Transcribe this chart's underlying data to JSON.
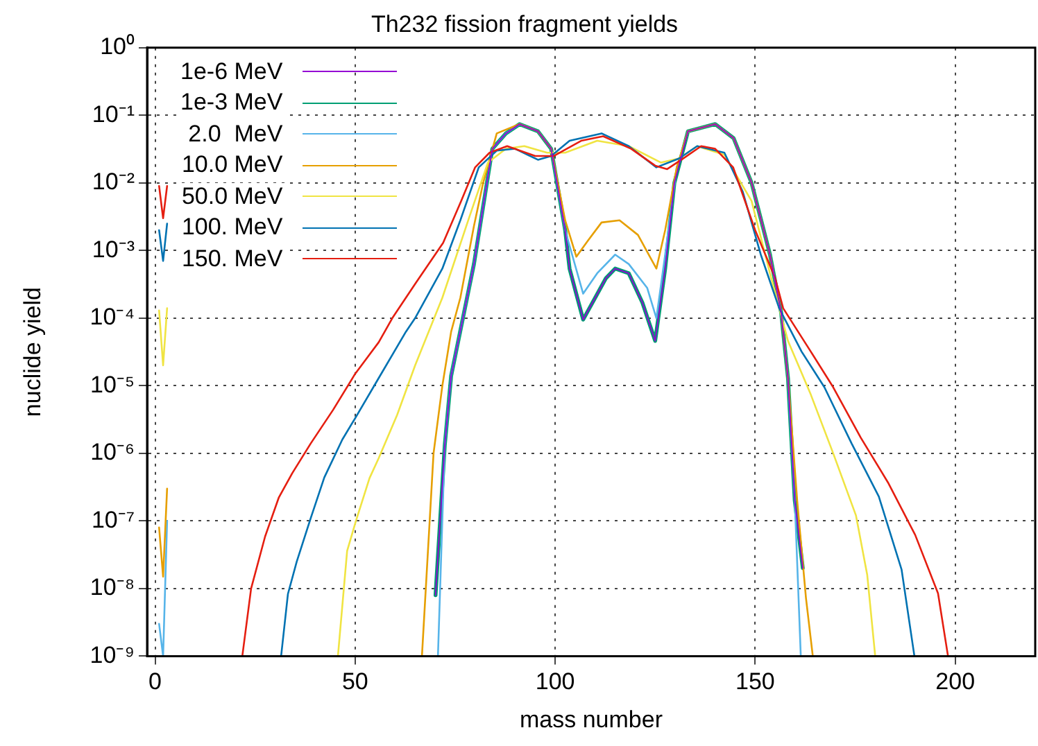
{
  "chart_data": {
    "type": "line",
    "title": "Th232 fission fragment yields",
    "xlabel": "mass number",
    "ylabel": "nuclide yield",
    "log": "y",
    "grid": true,
    "legend": "top left",
    "line_style": "solid",
    "marker": "none",
    "xlim": [
      -2,
      220
    ],
    "xticks": [
      0,
      50,
      100,
      150,
      200
    ],
    "ylim": [
      1e-09,
      1
    ],
    "yticks": [
      {
        "value": 1,
        "label": "10⁰"
      },
      {
        "value": 0.1,
        "label": "10⁻¹"
      },
      {
        "value": 0.01,
        "label": "10⁻²"
      },
      {
        "value": 0.001,
        "label": "10⁻³"
      },
      {
        "value": 0.0001,
        "label": "10⁻⁴"
      },
      {
        "value": 1e-05,
        "label": "10⁻⁵"
      },
      {
        "value": 1e-06,
        "label": "10⁻⁶"
      },
      {
        "value": 1e-07,
        "label": "10⁻⁷"
      },
      {
        "value": 1e-08,
        "label": "10⁻⁸"
      },
      {
        "value": 1e-09,
        "label": "10⁻⁹"
      }
    ],
    "series": [
      {
        "name": "1e-6 MeV",
        "color": "#9400d3",
        "x": [
          70.1,
          72.4,
          74,
          79.7,
          84.3,
          87.7,
          91.1,
          95.7,
          99,
          102.5,
          103.6,
          107,
          112.7,
          115,
          118.4,
          121.8,
          125,
          127.5,
          129.8,
          133.2,
          140,
          144.6,
          149.1,
          153.7,
          156.5,
          158.2,
          159.9,
          161.9
        ],
        "values": [
          8e-09,
          1.3e-06,
          1.4e-05,
          0.00063,
          0.032,
          0.054,
          0.074,
          0.058,
          0.032,
          0.002,
          0.00054,
          9.5e-05,
          0.00039,
          0.00054,
          0.00046,
          0.00017,
          4.6e-05,
          0.00054,
          0.01,
          0.058,
          0.074,
          0.046,
          0.01,
          0.00087,
          0.00012,
          1.3e-05,
          2e-07,
          2e-08
        ]
      },
      {
        "name": "1e-3 MeV",
        "color": "#009e73",
        "x": [
          70.1,
          72.4,
          74,
          79.7,
          84.3,
          87.7,
          91.1,
          95.7,
          99,
          102.5,
          103.6,
          107,
          112.7,
          115,
          118.4,
          121.8,
          125,
          127.5,
          129.8,
          133.2,
          140,
          144.6,
          149.1,
          153.7,
          156.5,
          158.2,
          159.9,
          161.9
        ],
        "values": [
          8e-09,
          1.3e-06,
          1.4e-05,
          0.00063,
          0.032,
          0.054,
          0.074,
          0.058,
          0.032,
          0.002,
          0.00054,
          9.5e-05,
          0.00039,
          0.00054,
          0.00046,
          0.00017,
          4.6e-05,
          0.00054,
          0.01,
          0.058,
          0.074,
          0.046,
          0.01,
          0.00087,
          0.00012,
          1.3e-05,
          2e-07,
          2e-08
        ]
      },
      {
        "name": "2.0  MeV",
        "color": "#56b4e9",
        "x": [
          1,
          2,
          3,
          10,
          70.7,
          72.4,
          74,
          79.7,
          84.3,
          87.7,
          91.1,
          95.7,
          99,
          102.5,
          107,
          110.5,
          115,
          118.4,
          123,
          125.3,
          127.5,
          130.4,
          133.2,
          140,
          144.6,
          149.1,
          153.7,
          156.5,
          158.2,
          159.9,
          161.4
        ],
        "values": [
          3e-09,
          1e-09,
          1e-07,
          null,
          1e-09,
          1.3e-06,
          1.4e-05,
          0.00063,
          0.032,
          0.054,
          0.074,
          0.058,
          0.032,
          0.002,
          0.00023,
          0.00046,
          0.00087,
          0.00063,
          0.00028,
          0.0001,
          0.00087,
          0.017,
          0.058,
          0.074,
          0.046,
          0.01,
          0.00087,
          0.00012,
          1.3e-05,
          2e-07,
          1e-09
        ]
      },
      {
        "name": "10.0 MeV",
        "color": "#e69f00",
        "x": [
          1,
          2,
          3,
          10,
          66.7,
          69.6,
          71.8,
          74,
          76.3,
          79.7,
          82,
          85.4,
          91.1,
          95.7,
          99,
          102.5,
          105.3,
          108.2,
          111.6,
          116.1,
          120.7,
          125.3,
          127.5,
          130.4,
          133.2,
          140,
          144.6,
          149.1,
          153.7,
          156.5,
          158.2,
          160.5,
          162.7,
          164.4
        ],
        "values": [
          8e-08,
          1.5e-08,
          3e-07,
          null,
          1e-09,
          1e-06,
          1e-05,
          6.3e-05,
          0.0002,
          0.0023,
          0.01,
          0.054,
          0.074,
          0.058,
          0.032,
          0.0028,
          0.00081,
          0.0014,
          0.0026,
          0.0028,
          0.0017,
          0.00054,
          0.002,
          0.017,
          0.058,
          0.074,
          0.046,
          0.01,
          0.00087,
          0.00012,
          1.3e-05,
          2e-07,
          7.2e-09,
          1e-09
        ]
      },
      {
        "name": "50.0 MeV",
        "color": "#f0e442",
        "x": [
          1,
          2,
          3,
          10,
          45.7,
          48,
          50.2,
          53.6,
          55.9,
          60.5,
          65,
          71.8,
          78.6,
          83.2,
          87.7,
          92.3,
          98,
          102.5,
          110.5,
          118.4,
          126.4,
          131,
          135.5,
          142.3,
          149.1,
          153.7,
          158.2,
          163.9,
          169.5,
          175.2,
          178,
          180
        ],
        "values": [
          0.00013,
          2e-05,
          0.00014,
          null,
          1e-09,
          3.6e-08,
          1e-07,
          4.3e-07,
          8.5e-07,
          3.7e-06,
          2e-05,
          0.0002,
          0.0032,
          0.02,
          0.032,
          0.035,
          0.028,
          0.028,
          0.042,
          0.035,
          0.02,
          0.023,
          0.035,
          0.026,
          0.0054,
          0.00046,
          4.6e-05,
          7.4e-06,
          1e-06,
          1.2e-07,
          1.6e-08,
          1e-09
        ]
      },
      {
        "name": "100. MeV",
        "color": "#0072b2",
        "x": [
          1,
          2,
          3,
          10,
          31.5,
          33.2,
          35.4,
          38.9,
          42.3,
          46.8,
          50,
          55.9,
          62.7,
          65,
          71.8,
          76.3,
          80.9,
          85.4,
          90,
          95.7,
          99,
          103.6,
          111.6,
          118.4,
          125.3,
          131,
          135.5,
          142.3,
          146.9,
          151.4,
          156,
          161.6,
          167.3,
          174.1,
          180.9,
          186.6,
          189.8
        ],
        "values": [
          0.002,
          0.0007,
          0.0025,
          null,
          1e-09,
          8.3e-09,
          2.5e-08,
          1.1e-07,
          4.4e-07,
          1.6e-06,
          3.3e-06,
          1.3e-05,
          6.3e-05,
          0.0001,
          0.00054,
          0.0028,
          0.017,
          0.03,
          0.032,
          0.022,
          0.025,
          0.042,
          0.054,
          0.035,
          0.017,
          0.023,
          0.035,
          0.028,
          0.0074,
          0.00087,
          0.00014,
          3.2e-05,
          9.5e-06,
          1.4e-06,
          2.3e-07,
          1.9e-08,
          1e-09
        ]
      },
      {
        "name": "150. MeV",
        "color": "#e51e10",
        "x": [
          1,
          2,
          3,
          10,
          21.8,
          24,
          27.5,
          30.9,
          34.3,
          38.9,
          44.5,
          50,
          55.9,
          59.3,
          65,
          72,
          76.5,
          80,
          83.6,
          88,
          95,
          99.6,
          106.5,
          112,
          119,
          125,
          128,
          132,
          136.5,
          140,
          144.5,
          150,
          155,
          157,
          163.9,
          169.5,
          176.4,
          183.2,
          190,
          195.7,
          198.2
        ],
        "values": [
          0.009,
          0.003,
          0.009,
          null,
          1e-09,
          1e-08,
          5.9e-08,
          2.2e-07,
          5.1e-07,
          1.4e-06,
          4.4e-06,
          1.5e-05,
          4.4e-05,
          0.0001,
          0.00032,
          0.0013,
          0.0054,
          0.017,
          0.028,
          0.035,
          0.025,
          0.025,
          0.042,
          0.049,
          0.032,
          0.018,
          0.016,
          0.023,
          0.035,
          0.032,
          0.017,
          0.002,
          0.00039,
          0.00014,
          3.2e-05,
          9.5e-06,
          1.7e-06,
          3.7e-07,
          6.2e-08,
          8.5e-09,
          1e-09
        ]
      }
    ]
  }
}
